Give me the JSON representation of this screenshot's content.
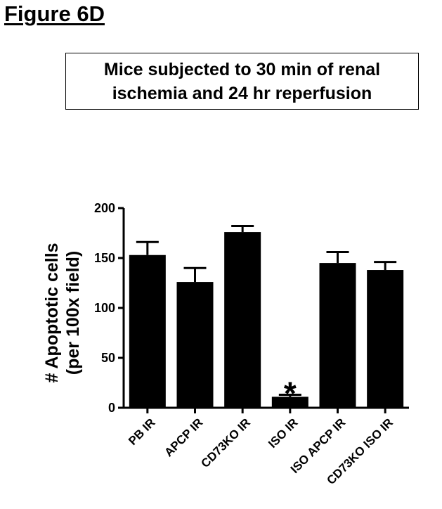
{
  "figure_label": "Figure 6D",
  "chart_data": {
    "type": "bar",
    "title": "Mice subjected to 30 min of renal ischemia and 24 hr reperfusion",
    "ylabel_line1": "# Apoptotic cells",
    "ylabel_line2": "(per 100x field)",
    "categories": [
      "PB IR",
      "APCP IR",
      "CD73KO IR",
      "ISO IR",
      "ISO APCP IR",
      "CD73KO ISO IR"
    ],
    "values": [
      153,
      126,
      176,
      11,
      145,
      138
    ],
    "errors": [
      13,
      14,
      6,
      2,
      11,
      8
    ],
    "annotations": [
      "",
      "",
      "",
      "*",
      "",
      ""
    ],
    "yticks": [
      "0",
      "50",
      "100",
      "150",
      "200"
    ],
    "ylim": [
      0,
      200
    ],
    "bar_color": "#000000",
    "grid": false
  }
}
